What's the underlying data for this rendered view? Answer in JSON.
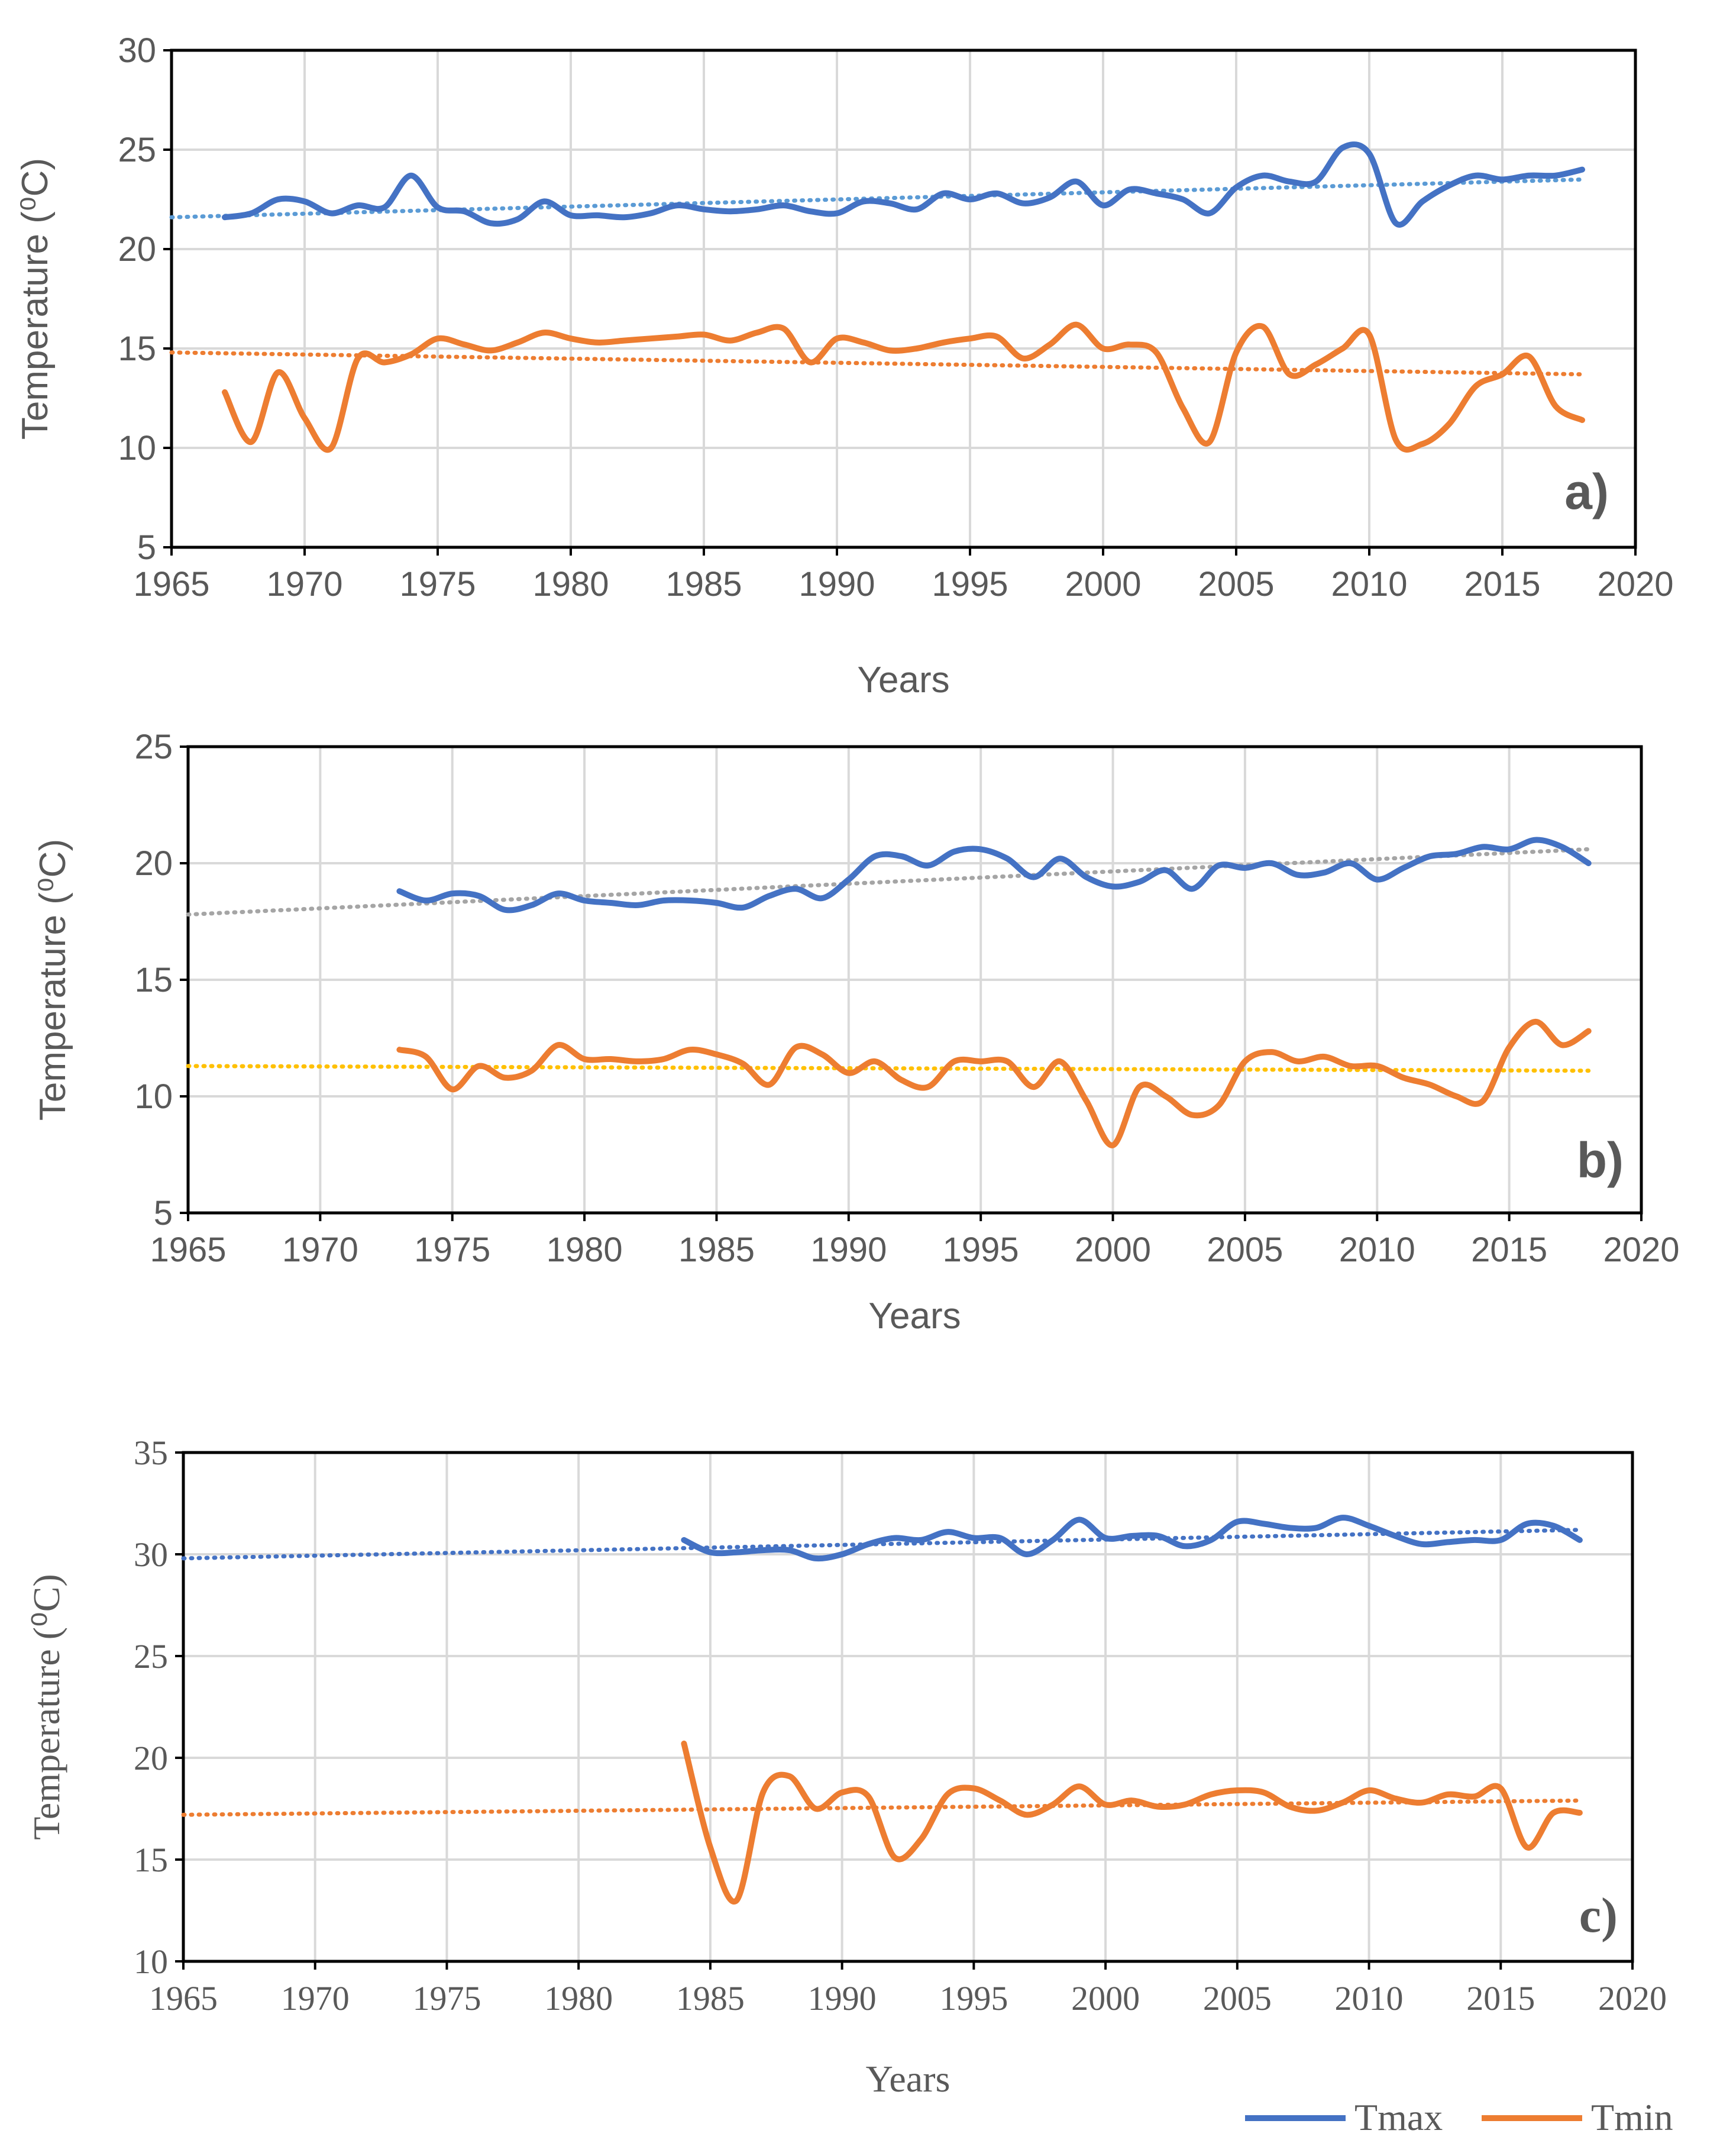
{
  "colors": {
    "tmax": "#4472C4",
    "tmin": "#ED7D31",
    "trend_gray": "#A5A5A5",
    "trend_yellow": "#FFC000",
    "grid": "#D9D9D9",
    "axis": "#000000"
  },
  "legend": {
    "items": [
      {
        "label": "Tmax",
        "color": "#4472C4"
      },
      {
        "label": "Tmin",
        "color": "#ED7D31"
      }
    ]
  },
  "chart_data": [
    {
      "type": "line",
      "panel_label": "a)",
      "xlabel": "Years",
      "ylabel": "Temperature (⁰C)",
      "xlim": [
        1965,
        2020
      ],
      "ylim": [
        5,
        30
      ],
      "xticks": [
        "1965",
        "1970",
        "1975",
        "1980",
        "1985",
        "1990",
        "1995",
        "2000",
        "2005",
        "2010",
        "2015",
        "2020"
      ],
      "yticks": [
        "5",
        "10",
        "15",
        "20",
        "25",
        "30"
      ],
      "series": [
        {
          "name": "Tmax",
          "x": [
            1967,
            1968,
            1969,
            1970,
            1971,
            1972,
            1973,
            1974,
            1975,
            1976,
            1977,
            1978,
            1979,
            1980,
            1981,
            1982,
            1983,
            1984,
            1985,
            1986,
            1987,
            1988,
            1989,
            1990,
            1991,
            1992,
            1993,
            1994,
            1995,
            1996,
            1997,
            1998,
            1999,
            2000,
            2001,
            2002,
            2003,
            2004,
            2005,
            2006,
            2007,
            2008,
            2009,
            2010,
            2011,
            2012,
            2013,
            2014,
            2015,
            2016,
            2017,
            2018
          ],
          "values": [
            21.6,
            21.8,
            22.5,
            22.4,
            21.8,
            22.2,
            22.1,
            23.7,
            22.1,
            21.9,
            21.3,
            21.5,
            22.4,
            21.7,
            21.7,
            21.6,
            21.8,
            22.2,
            22.0,
            21.9,
            22.0,
            22.2,
            21.9,
            21.8,
            22.4,
            22.3,
            22.0,
            22.8,
            22.5,
            22.8,
            22.3,
            22.6,
            23.4,
            22.2,
            23.0,
            22.8,
            22.5,
            21.8,
            23.1,
            23.7,
            23.4,
            23.4,
            25.1,
            24.8,
            21.3,
            22.4,
            23.2,
            23.7,
            23.5,
            23.7,
            23.7,
            24.0
          ]
        },
        {
          "name": "Tmin",
          "x": [
            1967,
            1968,
            1969,
            1970,
            1971,
            1972,
            1973,
            1974,
            1975,
            1976,
            1977,
            1978,
            1979,
            1980,
            1981,
            1982,
            1983,
            1984,
            1985,
            1986,
            1987,
            1988,
            1989,
            1990,
            1991,
            1992,
            1993,
            1994,
            1995,
            1996,
            1997,
            1998,
            1999,
            2000,
            2001,
            2002,
            2003,
            2004,
            2005,
            2006,
            2007,
            2008,
            2009,
            2010,
            2011,
            2012,
            2013,
            2014,
            2015,
            2016,
            2017,
            2018
          ],
          "values": [
            12.8,
            10.3,
            13.8,
            11.5,
            10.0,
            14.5,
            14.3,
            14.7,
            15.5,
            15.2,
            14.9,
            15.3,
            15.8,
            15.5,
            15.3,
            15.4,
            15.5,
            15.6,
            15.7,
            15.4,
            15.8,
            16.0,
            14.3,
            15.5,
            15.3,
            14.9,
            15.0,
            15.3,
            15.5,
            15.6,
            14.5,
            15.2,
            16.2,
            15.0,
            15.2,
            14.8,
            12.0,
            10.3,
            14.8,
            16.1,
            13.7,
            14.2,
            15.0,
            15.7,
            10.4,
            10.2,
            11.2,
            13.1,
            13.7,
            14.6,
            12.1,
            11.4
          ]
        }
      ],
      "trendlines": [
        {
          "series": "Tmax",
          "x": [
            1965,
            2018
          ],
          "values": [
            21.6,
            23.5
          ],
          "style": "dotted",
          "color": "#5B9BD5"
        },
        {
          "series": "Tmin",
          "x": [
            1965,
            2018
          ],
          "values": [
            14.8,
            13.7
          ],
          "style": "dotted",
          "color": "#ED7D31"
        }
      ]
    },
    {
      "type": "line",
      "panel_label": "b)",
      "xlabel": "Years",
      "ylabel": "Temperature (⁰C)",
      "xlim": [
        1965,
        2020
      ],
      "ylim": [
        5,
        25
      ],
      "xticks": [
        "1965",
        "1970",
        "1975",
        "1980",
        "1985",
        "1990",
        "1995",
        "2000",
        "2005",
        "2010",
        "2015",
        "2020"
      ],
      "yticks": [
        "5",
        "10",
        "15",
        "20",
        "25"
      ],
      "series": [
        {
          "name": "Tmax",
          "x": [
            1973,
            1974,
            1975,
            1976,
            1977,
            1978,
            1979,
            1980,
            1981,
            1982,
            1983,
            1984,
            1985,
            1986,
            1987,
            1988,
            1989,
            1990,
            1991,
            1992,
            1993,
            1994,
            1995,
            1996,
            1997,
            1998,
            1999,
            2000,
            2001,
            2002,
            2003,
            2004,
            2005,
            2006,
            2007,
            2008,
            2009,
            2010,
            2011,
            2012,
            2013,
            2014,
            2015,
            2016,
            2017,
            2018
          ],
          "values": [
            18.8,
            18.4,
            18.7,
            18.6,
            18.0,
            18.2,
            18.7,
            18.4,
            18.3,
            18.2,
            18.4,
            18.4,
            18.3,
            18.1,
            18.6,
            18.9,
            18.5,
            19.3,
            20.3,
            20.3,
            19.9,
            20.5,
            20.6,
            20.2,
            19.4,
            20.2,
            19.4,
            19.0,
            19.2,
            19.7,
            18.9,
            19.9,
            19.8,
            20.0,
            19.5,
            19.6,
            20.0,
            19.3,
            19.8,
            20.3,
            20.4,
            20.7,
            20.6,
            21.0,
            20.7,
            20.0
          ]
        },
        {
          "name": "Tmin",
          "x": [
            1973,
            1974,
            1975,
            1976,
            1977,
            1978,
            1979,
            1980,
            1981,
            1982,
            1983,
            1984,
            1985,
            1986,
            1987,
            1988,
            1989,
            1990,
            1991,
            1992,
            1993,
            1994,
            1995,
            1996,
            1997,
            1998,
            1999,
            2000,
            2001,
            2002,
            2003,
            2004,
            2005,
            2006,
            2007,
            2008,
            2009,
            2010,
            2011,
            2012,
            2013,
            2014,
            2015,
            2016,
            2017,
            2018
          ],
          "values": [
            12.0,
            11.7,
            10.3,
            11.3,
            10.8,
            11.1,
            12.2,
            11.6,
            11.6,
            11.5,
            11.6,
            12.0,
            11.8,
            11.4,
            10.5,
            12.1,
            11.8,
            11.0,
            11.5,
            10.7,
            10.4,
            11.5,
            11.5,
            11.5,
            10.4,
            11.5,
            9.8,
            7.9,
            10.4,
            10.0,
            9.2,
            9.6,
            11.5,
            11.9,
            11.5,
            11.7,
            11.3,
            11.3,
            10.8,
            10.5,
            10.0,
            9.8,
            12.1,
            13.2,
            12.2,
            12.8
          ]
        }
      ],
      "trendlines": [
        {
          "series": "Tmax",
          "x": [
            1965,
            2018
          ],
          "values": [
            17.8,
            20.6
          ],
          "style": "dotted",
          "color": "#A5A5A5"
        },
        {
          "series": "Tmin",
          "x": [
            1965,
            2018
          ],
          "values": [
            11.3,
            11.1
          ],
          "style": "dotted",
          "color": "#FFC000"
        }
      ]
    },
    {
      "type": "line",
      "panel_label": "c)",
      "xlabel": "Years",
      "ylabel": "Temperature (⁰C)",
      "xlim": [
        1965,
        2020
      ],
      "ylim": [
        10,
        35
      ],
      "xticks": [
        "1965",
        "1970",
        "1975",
        "1980",
        "1985",
        "1990",
        "1995",
        "2000",
        "2005",
        "2010",
        "2015",
        "2020"
      ],
      "yticks": [
        "10",
        "15",
        "20",
        "25",
        "30",
        "35"
      ],
      "series": [
        {
          "name": "Tmax",
          "x": [
            1984,
            1985,
            1986,
            1987,
            1988,
            1989,
            1990,
            1991,
            1992,
            1993,
            1994,
            1995,
            1996,
            1997,
            1998,
            1999,
            2000,
            2001,
            2002,
            2003,
            2004,
            2005,
            2006,
            2007,
            2008,
            2009,
            2010,
            2011,
            2012,
            2013,
            2014,
            2015,
            2016,
            2017,
            2018
          ],
          "values": [
            30.7,
            30.1,
            30.1,
            30.2,
            30.2,
            29.8,
            30.0,
            30.5,
            30.8,
            30.7,
            31.1,
            30.8,
            30.8,
            30.0,
            30.7,
            31.7,
            30.8,
            30.9,
            30.9,
            30.4,
            30.7,
            31.6,
            31.5,
            31.3,
            31.3,
            31.8,
            31.4,
            30.9,
            30.5,
            30.6,
            30.7,
            30.7,
            31.5,
            31.4,
            30.7
          ]
        },
        {
          "name": "Tmin",
          "x": [
            1984,
            1985,
            1986,
            1987,
            1988,
            1989,
            1990,
            1991,
            1992,
            1993,
            1994,
            1995,
            1996,
            1997,
            1998,
            1999,
            2000,
            2001,
            2002,
            2003,
            2004,
            2005,
            2006,
            2007,
            2008,
            2009,
            2010,
            2011,
            2012,
            2013,
            2014,
            2015,
            2016,
            2017,
            2018
          ],
          "values": [
            20.7,
            15.6,
            13.0,
            18.3,
            19.1,
            17.5,
            18.3,
            18.1,
            15.1,
            16.0,
            18.2,
            18.5,
            17.9,
            17.2,
            17.7,
            18.6,
            17.7,
            17.9,
            17.6,
            17.7,
            18.2,
            18.4,
            18.3,
            17.6,
            17.4,
            17.8,
            18.4,
            18.0,
            17.8,
            18.2,
            18.1,
            18.5,
            15.6,
            17.3,
            17.3
          ]
        }
      ],
      "trendlines": [
        {
          "series": "Tmax",
          "x": [
            1965,
            2018
          ],
          "values": [
            29.8,
            31.2
          ],
          "style": "dotted",
          "color": "#4472C4"
        },
        {
          "series": "Tmin",
          "x": [
            1965,
            2018
          ],
          "values": [
            17.2,
            17.9
          ],
          "style": "dotted",
          "color": "#ED7D31"
        }
      ]
    }
  ]
}
